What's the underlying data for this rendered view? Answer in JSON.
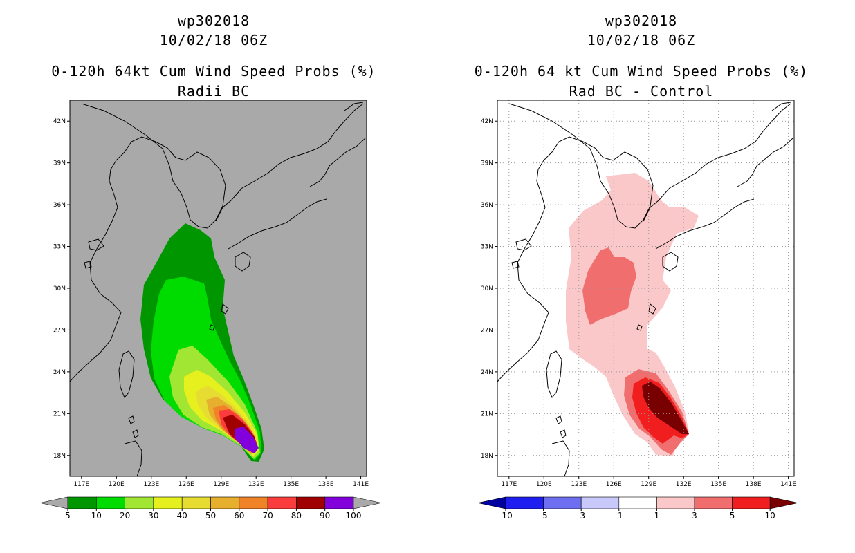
{
  "panels": [
    {
      "id": "left",
      "title_line1": "wp302018",
      "title_line2": "10/02/18 06Z",
      "title_line3": "0-120h 64kt Cum Wind Speed Probs (%)",
      "title_line4": "Radii BC",
      "background": "#a9a9a9",
      "chart_data": {
        "type": "heatmap",
        "title": "0-120h 64kt Cum Wind Speed Probs (%)",
        "subtitle": "Radii BC",
        "storm": "wp302018",
        "valid": "10/02/18 06Z",
        "units": "%",
        "x_ticks": [
          "117E",
          "120E",
          "123E",
          "126E",
          "129E",
          "132E",
          "135E",
          "138E",
          "141E"
        ],
        "y_ticks": [
          "42N",
          "39N",
          "36N",
          "33N",
          "30N",
          "27N",
          "24N",
          "21N",
          "18N"
        ],
        "lon_range": [
          116,
          141.5
        ],
        "lat_range": [
          16.5,
          43.5
        ],
        "colorbar": {
          "labels": [
            "5",
            "10",
            "20",
            "30",
            "40",
            "50",
            "60",
            "70",
            "80",
            "90",
            "100"
          ],
          "colors": [
            "#009600",
            "#00dc00",
            "#a0e632",
            "#e6f01e",
            "#e6dc32",
            "#e6af2d",
            "#f08228",
            "#fa3c3c",
            "#a00000",
            "#8200dc"
          ],
          "extend_color": "#a9a9a9"
        }
      }
    },
    {
      "id": "right",
      "title_line1": "wp302018",
      "title_line2": "10/02/18 06Z",
      "title_line3": "0-120h 64 kt Cum Wind Speed Probs (%)",
      "title_line4": "Rad BC - Control",
      "background": "#ffffff",
      "chart_data": {
        "type": "heatmap",
        "title": "0-120h 64 kt Cum Wind Speed Probs (%)",
        "subtitle": "Rad BC - Control",
        "storm": "wp302018",
        "valid": "10/02/18 06Z",
        "units": "%",
        "x_ticks": [
          "117E",
          "120E",
          "123E",
          "126E",
          "129E",
          "132E",
          "135E",
          "138E",
          "141E"
        ],
        "y_ticks": [
          "42N",
          "39N",
          "36N",
          "33N",
          "30N",
          "27N",
          "24N",
          "21N",
          "18N"
        ],
        "lon_range": [
          116,
          141.5
        ],
        "lat_range": [
          16.5,
          43.5
        ],
        "colorbar": {
          "labels": [
            "-10",
            "-5",
            "-3",
            "-1",
            "1",
            "3",
            "5",
            "10"
          ],
          "colors": [
            "#1e1ef0",
            "#6e6ef0",
            "#c8c8fa",
            "#ffffff",
            "#fac8c8",
            "#f06e6e",
            "#f01e1e"
          ],
          "low_color": "#0000a0",
          "high_color": "#780000"
        }
      }
    }
  ]
}
